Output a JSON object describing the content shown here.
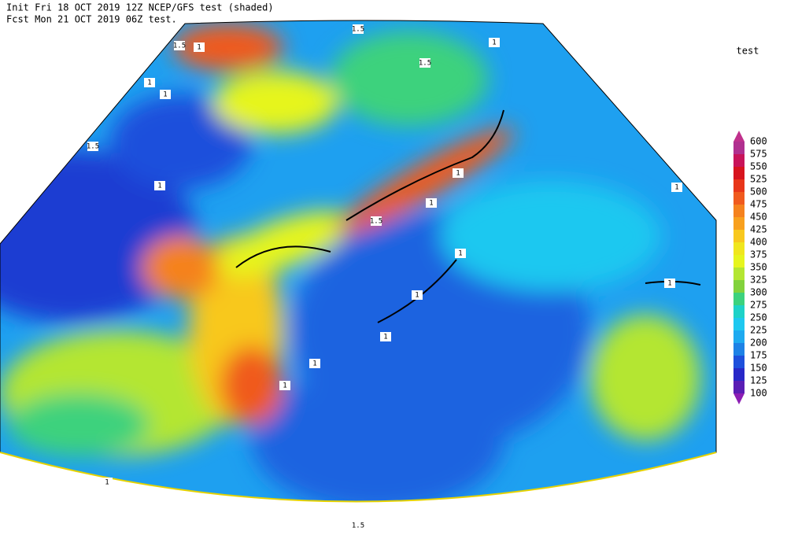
{
  "header": {
    "line1": "Init  Fri 18 OCT 2019 12Z   NCEP/GFS test (shaded)",
    "line2": "Fcst Mon 21 OCT 2019 06Z  test."
  },
  "legend": {
    "title": "test",
    "levels": [
      100,
      125,
      150,
      175,
      200,
      225,
      250,
      275,
      300,
      325,
      350,
      375,
      400,
      425,
      450,
      475,
      500,
      525,
      550,
      575,
      600
    ],
    "colors": [
      "#8c1eb4",
      "#5a1eb4",
      "#2828c8",
      "#1e50dc",
      "#1e82e6",
      "#1eaaf0",
      "#1ec8f0",
      "#1ed2c8",
      "#3cd27d",
      "#82d23c",
      "#b4e632",
      "#e6f51e",
      "#f0e61e",
      "#f8c81e",
      "#f8a01e",
      "#f5821e",
      "#f05a1e",
      "#e8361a",
      "#d7141e",
      "#c8145a",
      "#b0308f",
      "#c0308c"
    ]
  },
  "contour_labels": [
    "1.5",
    "1.5",
    "1",
    "1",
    "1",
    "1.5",
    "1",
    "1.5",
    "1",
    "1",
    "1",
    "1",
    "1",
    "1.5",
    "1",
    "1",
    "1",
    "1",
    "1",
    "1",
    "1.5"
  ]
}
